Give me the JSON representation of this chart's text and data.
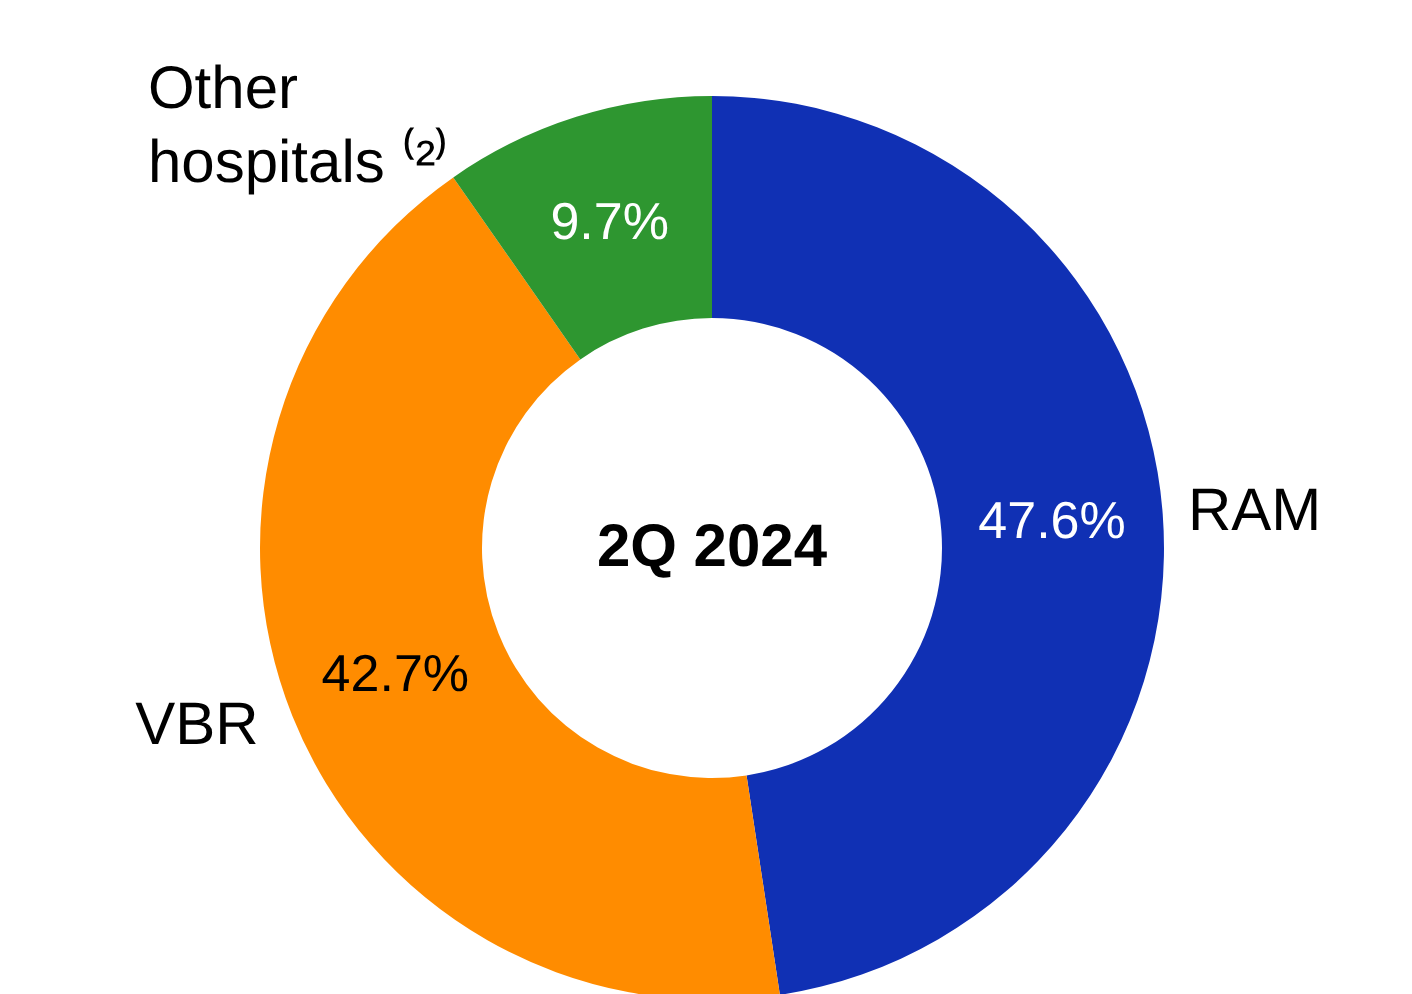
{
  "chart_data": {
    "type": "donut",
    "title": "2Q 2024",
    "categories": [
      "RAM",
      "VBR",
      "Other hospitals ⁽²⁾"
    ],
    "values": [
      47.6,
      42.7,
      9.7
    ],
    "colors": [
      "#1030b4",
      "#ff8c00",
      "#2e9630"
    ],
    "value_labels": [
      "47.6%",
      "42.7%",
      "9.7%"
    ]
  }
}
